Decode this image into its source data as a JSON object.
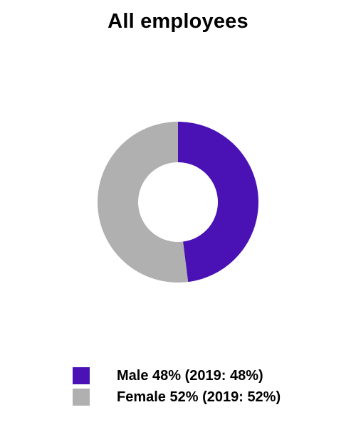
{
  "chart_data": {
    "type": "pie",
    "variant": "donut",
    "title": "All employees",
    "categories": [
      "Male",
      "Female"
    ],
    "values": [
      48,
      52
    ],
    "colors": [
      "#4a12b4",
      "#b0b0b0"
    ],
    "legend_position": "bottom",
    "legend": [
      {
        "label": "Male 48% (2019: 48%)",
        "color": "#4a12b4"
      },
      {
        "label": "Female 52% (2019: 52%)",
        "color": "#b0b0b0"
      }
    ]
  }
}
